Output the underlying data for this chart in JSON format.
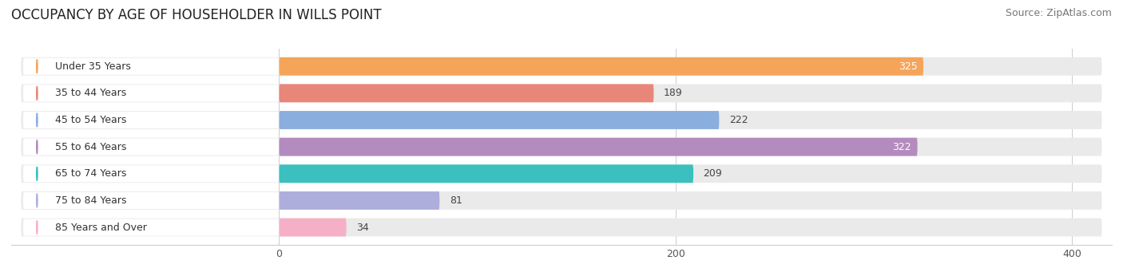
{
  "title": "OCCUPANCY BY AGE OF HOUSEHOLDER IN WILLS POINT",
  "source": "Source: ZipAtlas.com",
  "categories": [
    "Under 35 Years",
    "35 to 44 Years",
    "45 to 54 Years",
    "55 to 64 Years",
    "65 to 74 Years",
    "75 to 84 Years",
    "85 Years and Over"
  ],
  "values": [
    325,
    189,
    222,
    322,
    209,
    81,
    34
  ],
  "bar_colors": [
    "#F5A55A",
    "#E8867A",
    "#8AAEDD",
    "#B48BBE",
    "#3BBFBF",
    "#AEAEDD",
    "#F5B0C8"
  ],
  "bar_bg_color": "#EAEAEA",
  "data_min": 0,
  "data_max": 400,
  "xticks": [
    0,
    200,
    400
  ],
  "title_fontsize": 12,
  "source_fontsize": 9,
  "label_fontsize": 9,
  "value_fontsize": 9,
  "background_color": "#FFFFFF"
}
